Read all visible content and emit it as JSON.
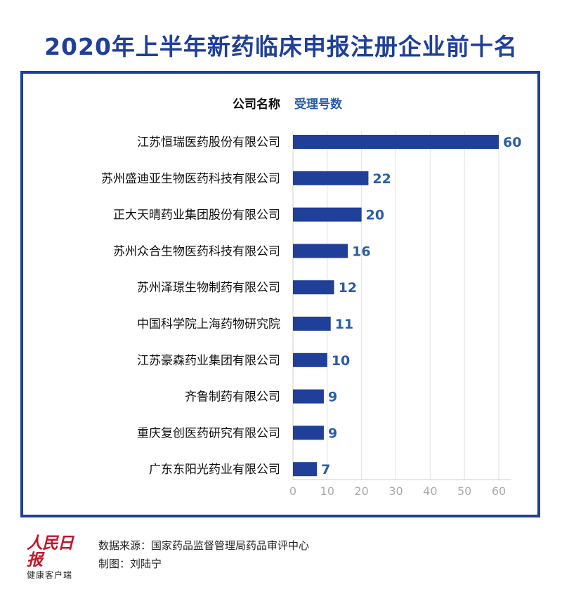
{
  "title": "2020年上半年新药临床申报注册企业前十名",
  "header": {
    "company_col": "公司名称",
    "value_col": "受理号数"
  },
  "colors": {
    "bar": "#1f3f99",
    "label": "#2a5ca8",
    "title": "#1f3f99",
    "grid": "#e1e1e1"
  },
  "chart_data": {
    "type": "bar",
    "orientation": "horizontal",
    "categories": [
      "江苏恒瑞医药股份有限公司",
      "苏州盛迪亚生物医药科技有限公司",
      "正大天晴药业集团股份有限公司",
      "苏州众合生物医药科技有限公司",
      "苏州泽璟生物制药有限公司",
      "中国科学院上海药物研究院",
      "江苏豪森药业集团有限公司",
      "齐鲁制药有限公司",
      "重庆复创医药研究有限公司",
      "广东东阳光药业有限公司"
    ],
    "values": [
      60,
      22,
      20,
      16,
      12,
      11,
      10,
      9,
      9,
      7
    ],
    "xlim": [
      0,
      60
    ],
    "xticks": [
      0,
      10,
      20,
      30,
      40,
      50,
      60
    ],
    "grid": true
  },
  "footer": {
    "logo_main": "人民日报",
    "logo_sub": "健康客户端",
    "source": "数据来源：国家药品监督管理局药品审评中心",
    "author": "制图：刘陆宁"
  }
}
